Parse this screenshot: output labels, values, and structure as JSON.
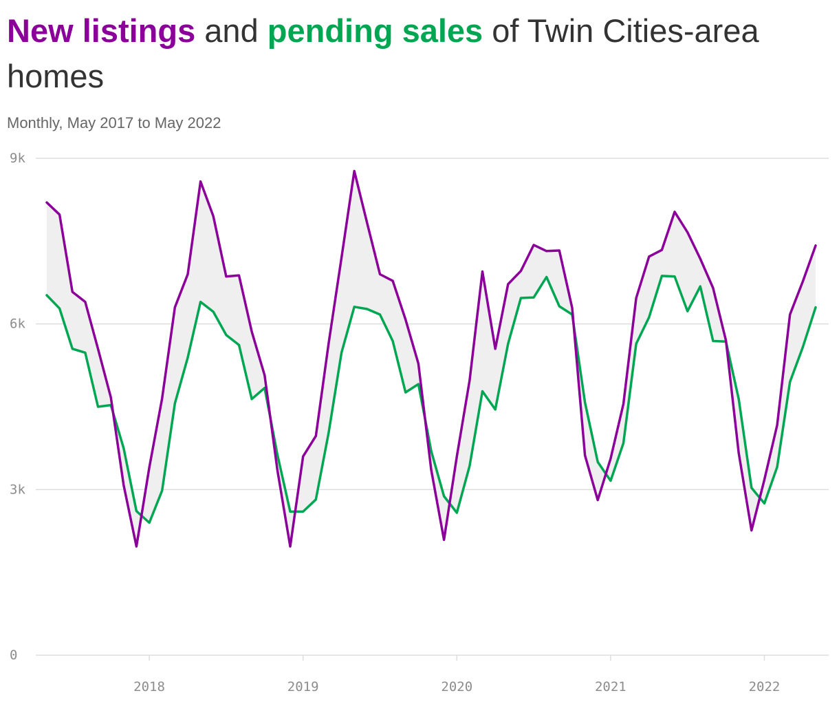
{
  "title": {
    "new_listings": "New listings",
    "and": " and ",
    "pending_sales": "pending sales",
    "rest": " of Twin Cities-area homes"
  },
  "subtitle": "Monthly, May 2017 to May 2022",
  "colors": {
    "new_listings": "#8a0099",
    "pending_sales": "#00a651",
    "gap_fill": "#efefef",
    "grid": "#dddddd"
  },
  "chart_data": {
    "type": "line",
    "x": [
      "2017-05",
      "2017-06",
      "2017-07",
      "2017-08",
      "2017-09",
      "2017-10",
      "2017-11",
      "2017-12",
      "2018-01",
      "2018-02",
      "2018-03",
      "2018-04",
      "2018-05",
      "2018-06",
      "2018-07",
      "2018-08",
      "2018-09",
      "2018-10",
      "2018-11",
      "2018-12",
      "2019-01",
      "2019-02",
      "2019-03",
      "2019-04",
      "2019-05",
      "2019-06",
      "2019-07",
      "2019-08",
      "2019-09",
      "2019-10",
      "2019-11",
      "2019-12",
      "2020-01",
      "2020-02",
      "2020-03",
      "2020-04",
      "2020-05",
      "2020-06",
      "2020-07",
      "2020-08",
      "2020-09",
      "2020-10",
      "2020-11",
      "2020-12",
      "2021-01",
      "2021-02",
      "2021-03",
      "2021-04",
      "2021-05",
      "2021-06",
      "2021-07",
      "2021-08",
      "2021-09",
      "2021-10",
      "2021-11",
      "2021-12",
      "2022-01",
      "2022-02",
      "2022-03",
      "2022-04",
      "2022-05"
    ],
    "series": [
      {
        "name": "New listings",
        "values": [
          8200,
          7980,
          6580,
          6400,
          5550,
          4670,
          3080,
          1970,
          3400,
          4650,
          6300,
          6900,
          8580,
          7950,
          6860,
          6880,
          5860,
          5070,
          3350,
          1970,
          3600,
          3970,
          5650,
          7200,
          8770,
          7830,
          6900,
          6780,
          6080,
          5280,
          3360,
          2090,
          3600,
          4980,
          6950,
          5550,
          6720,
          6960,
          7430,
          7320,
          7330,
          6290,
          3620,
          2810,
          3560,
          4550,
          6470,
          7220,
          7340,
          8030,
          7660,
          7180,
          6650,
          5700,
          3660,
          2260,
          3180,
          4170,
          6170,
          6770,
          7420
        ]
      },
      {
        "name": "Pending sales",
        "values": [
          6520,
          6280,
          5550,
          5480,
          4500,
          4530,
          3750,
          2610,
          2400,
          2980,
          4560,
          5390,
          6400,
          6220,
          5800,
          5620,
          4640,
          4840,
          3630,
          2600,
          2600,
          2820,
          4030,
          5480,
          6310,
          6270,
          6170,
          5690,
          4760,
          4910,
          3700,
          2880,
          2580,
          3430,
          4780,
          4450,
          5640,
          6470,
          6480,
          6850,
          6320,
          6170,
          4580,
          3500,
          3160,
          3840,
          5640,
          6120,
          6870,
          6860,
          6230,
          6680,
          5690,
          5680,
          4640,
          3030,
          2750,
          3410,
          4950,
          5580,
          6300
        ]
      }
    ],
    "y_ticks": [
      {
        "value": 9000,
        "label": "9k"
      },
      {
        "value": 6000,
        "label": "6k"
      },
      {
        "value": 3000,
        "label": "3k"
      },
      {
        "value": 0,
        "label": "0"
      }
    ],
    "x_ticks": [
      {
        "value": "2018-01",
        "label": "2018"
      },
      {
        "value": "2019-01",
        "label": "2019"
      },
      {
        "value": "2020-01",
        "label": "2020"
      },
      {
        "value": "2021-01",
        "label": "2021"
      },
      {
        "value": "2022-01",
        "label": "2022"
      }
    ],
    "ylim": [
      0,
      9000
    ],
    "grid": true,
    "legend": "in-title",
    "gap_shading": true
  }
}
